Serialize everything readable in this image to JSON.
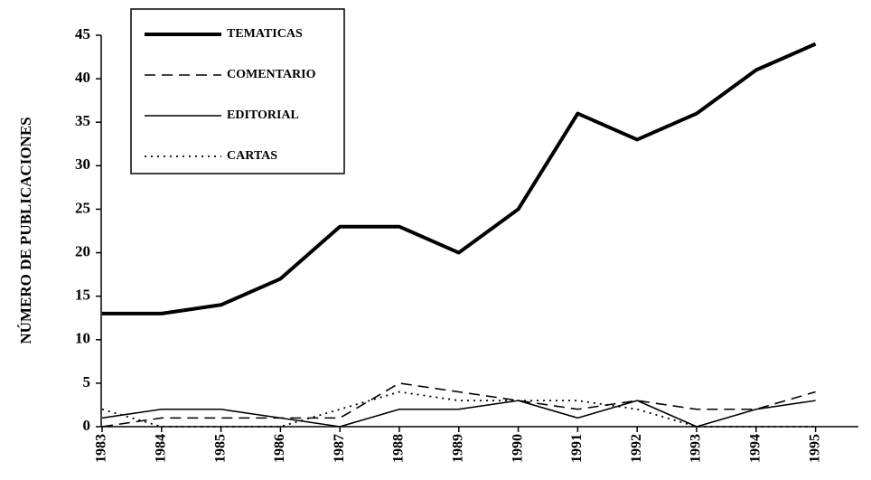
{
  "chart_data": {
    "type": "line",
    "y_label": "NÚMERO DE PUBLICACIONES",
    "categories": [
      "1983",
      "1984",
      "1985",
      "1986",
      "1987",
      "1988",
      "1989",
      "1990",
      "1991",
      "1992",
      "1993",
      "1994",
      "1995"
    ],
    "series": [
      {
        "name": "TEMATICAS",
        "color": "#000000",
        "style": "solid",
        "width": 4,
        "values": [
          13,
          13,
          14,
          17,
          23,
          23,
          20,
          25,
          36,
          33,
          36,
          41,
          44
        ]
      },
      {
        "name": "COMENTARIO",
        "color": "#000000",
        "style": "dashed",
        "width": 1.6,
        "values": [
          0,
          1,
          1,
          1,
          1,
          5,
          4,
          3,
          2,
          3,
          2,
          2,
          4
        ]
      },
      {
        "name": "EDITORIAL",
        "color": "#000000",
        "style": "solid",
        "width": 1.6,
        "values": [
          1,
          2,
          2,
          1,
          0,
          2,
          2,
          3,
          1,
          3,
          0,
          2,
          3
        ]
      },
      {
        "name": "CARTAS",
        "color": "#000000",
        "style": "dotted",
        "width": 1.8,
        "values": [
          2,
          0,
          0,
          0,
          2,
          4,
          3,
          3,
          3,
          2,
          0,
          0,
          0
        ]
      }
    ],
    "ylim": [
      0,
      45
    ],
    "yticks": [
      0,
      5,
      10,
      15,
      20,
      25,
      30,
      35,
      40,
      45
    ]
  }
}
